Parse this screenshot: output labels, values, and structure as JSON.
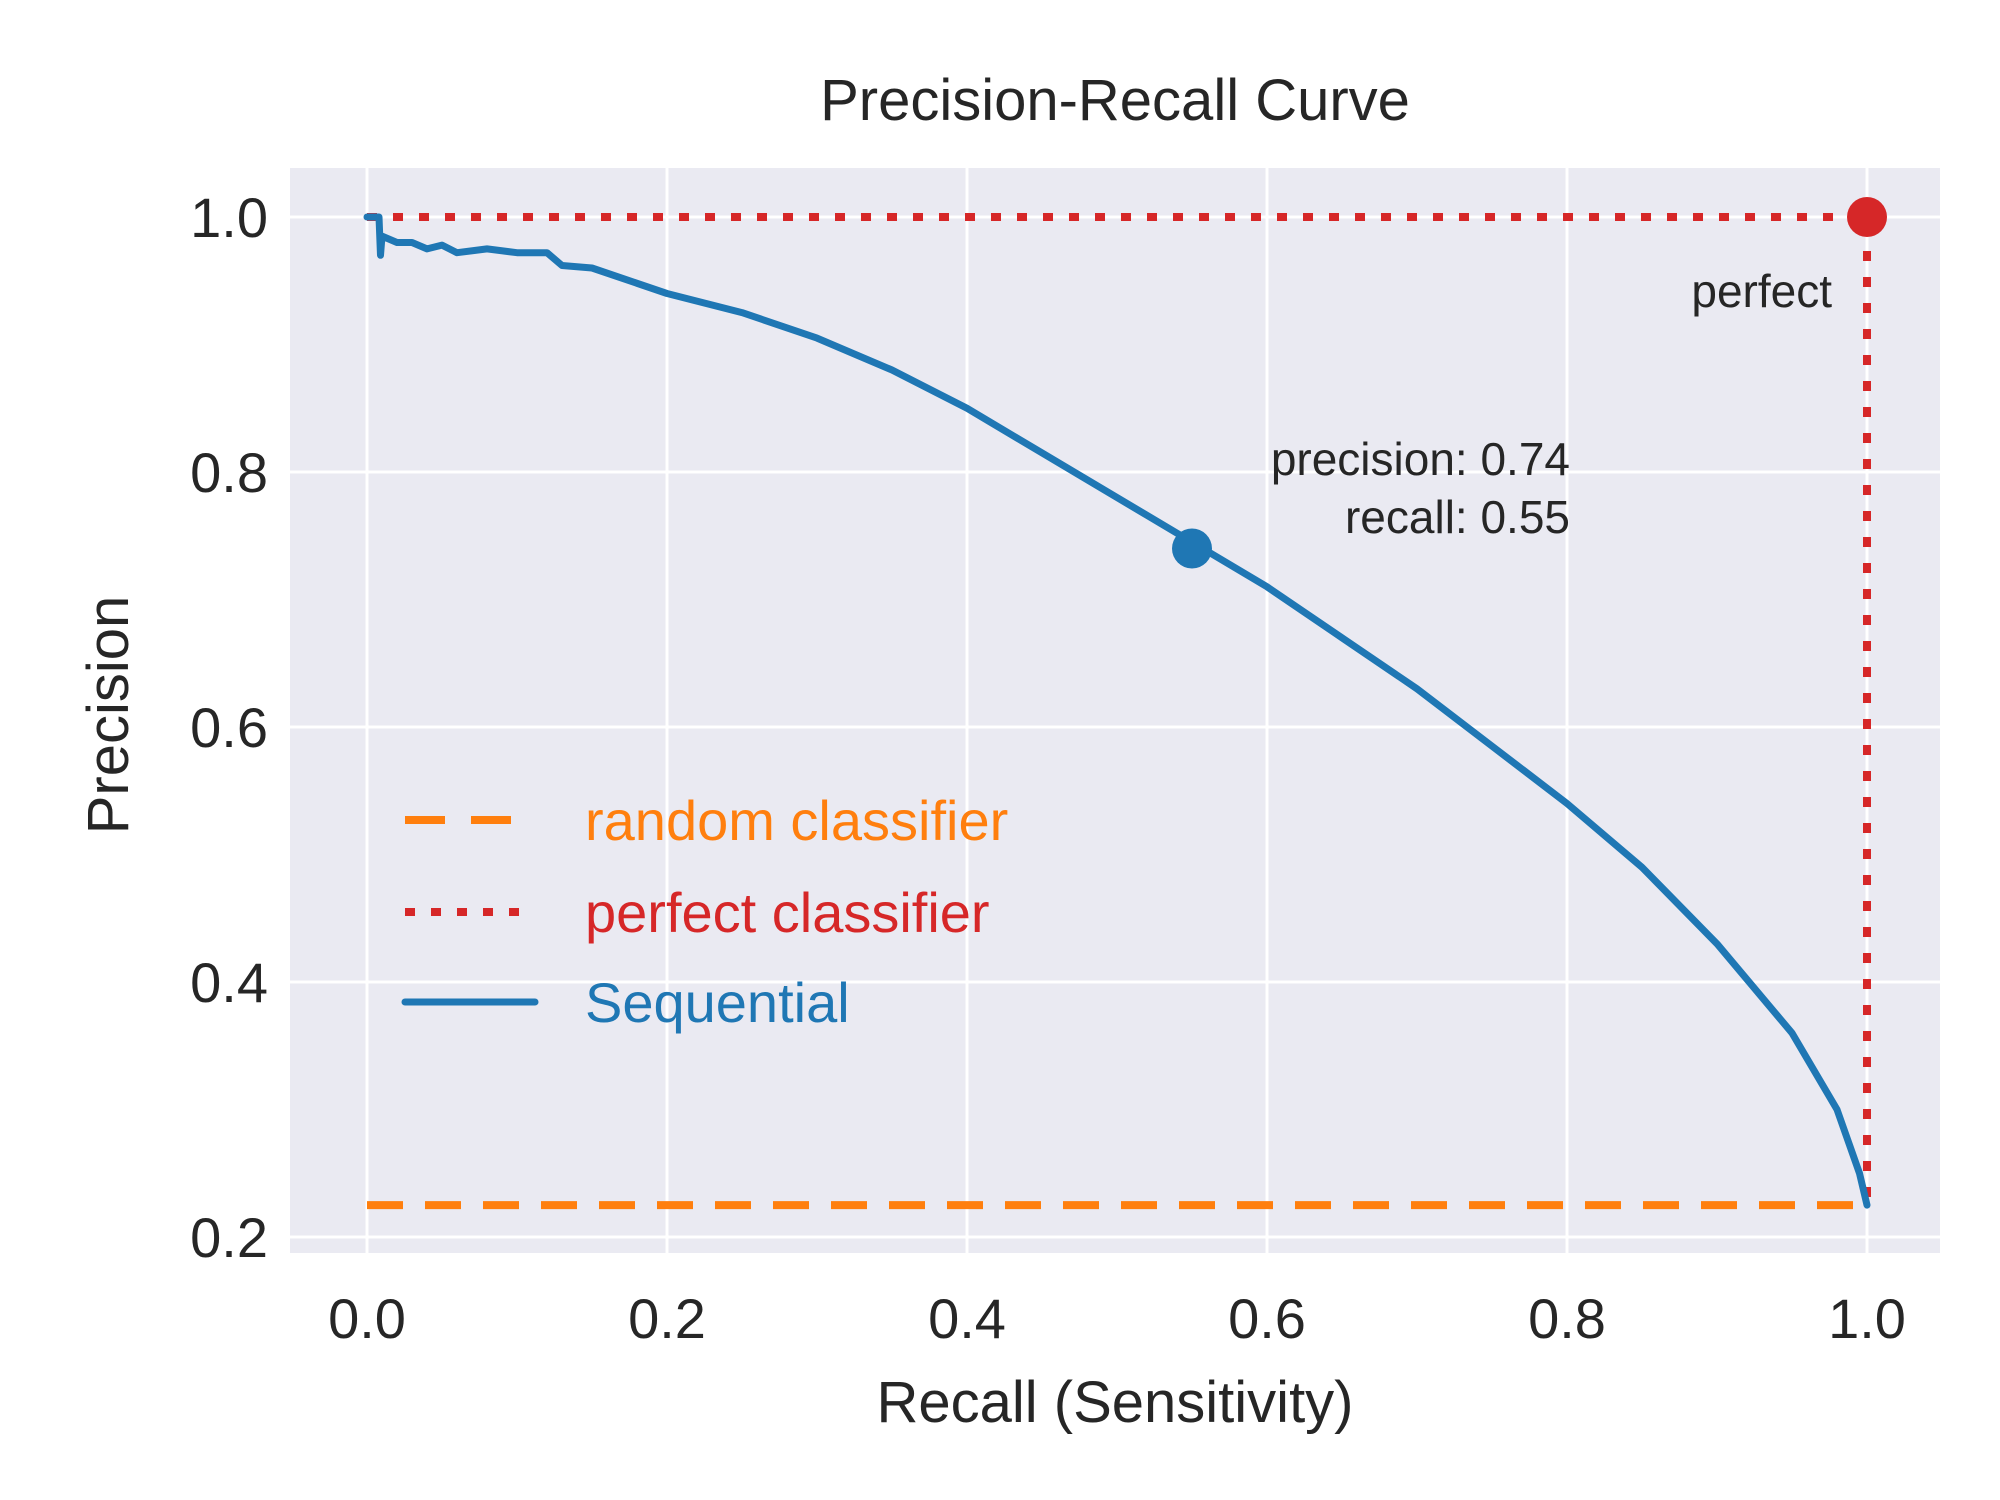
{
  "chart_data": {
    "type": "line",
    "title": "Precision-Recall Curve",
    "xlabel": "Recall (Sensitivity)",
    "ylabel": "Precision",
    "xlim": [
      -0.05,
      1.05
    ],
    "ylim": [
      0.19,
      1.04
    ],
    "xticks": [
      0.0,
      0.2,
      0.4,
      0.6,
      0.8,
      1.0
    ],
    "xtick_labels": [
      "0.0",
      "0.2",
      "0.4",
      "0.6",
      "0.8",
      "1.0"
    ],
    "yticks": [
      0.2,
      0.4,
      0.6,
      0.8,
      1.0
    ],
    "ytick_labels": [
      "0.2",
      "0.4",
      "0.6",
      "0.8",
      "1.0"
    ],
    "grid": true,
    "legend_position": "center-left",
    "colors": {
      "background": "#eaeaf2",
      "grid": "#ffffff",
      "random": "#ff7f0e",
      "perfect": "#d62728",
      "sequential": "#1f77b4"
    },
    "series": [
      {
        "name": "random classifier",
        "style": "dashed",
        "x": [
          0.0,
          1.0
        ],
        "y": [
          0.225,
          0.225
        ]
      },
      {
        "name": "perfect classifier",
        "style": "dotted",
        "x": [
          0.0,
          1.0,
          1.0
        ],
        "y": [
          1.0,
          1.0,
          0.225
        ]
      },
      {
        "name": "Sequential",
        "style": "solid",
        "x": [
          0.0,
          0.008,
          0.009,
          0.01,
          0.02,
          0.03,
          0.04,
          0.05,
          0.06,
          0.08,
          0.1,
          0.12,
          0.13,
          0.15,
          0.2,
          0.25,
          0.3,
          0.35,
          0.4,
          0.45,
          0.5,
          0.55,
          0.6,
          0.65,
          0.7,
          0.75,
          0.8,
          0.85,
          0.9,
          0.95,
          0.98,
          0.995,
          1.0
        ],
        "y": [
          1.0,
          1.0,
          0.97,
          0.985,
          0.98,
          0.98,
          0.975,
          0.978,
          0.972,
          0.975,
          0.972,
          0.972,
          0.962,
          0.96,
          0.94,
          0.925,
          0.905,
          0.88,
          0.85,
          0.815,
          0.78,
          0.745,
          0.71,
          0.67,
          0.63,
          0.585,
          0.54,
          0.49,
          0.43,
          0.36,
          0.3,
          0.25,
          0.225
        ]
      }
    ],
    "annotations": [
      {
        "name": "operating-point",
        "x": 0.55,
        "y": 0.74,
        "lines": [
          "precision: 0.74",
          "recall: 0.55"
        ]
      },
      {
        "name": "perfect-point",
        "x": 1.0,
        "y": 1.0,
        "lines": [
          "perfect"
        ]
      }
    ]
  }
}
